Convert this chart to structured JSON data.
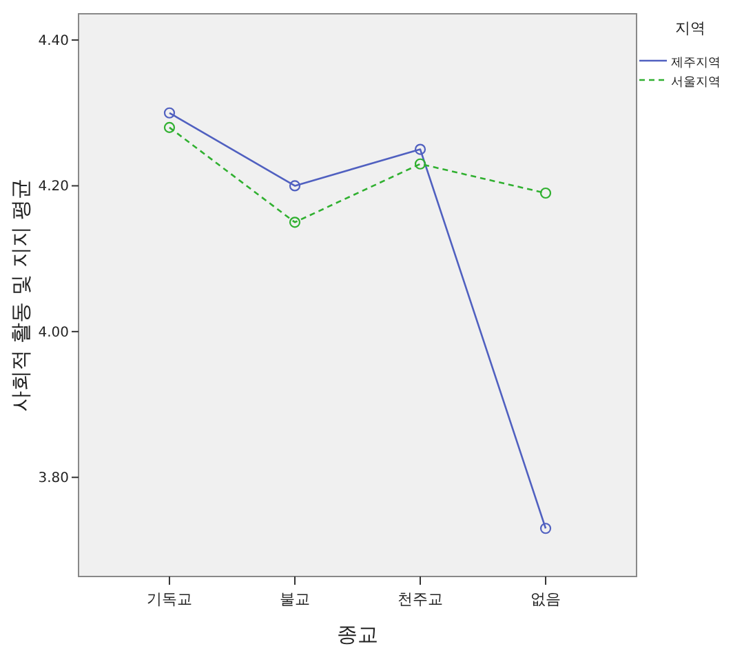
{
  "chart_data": {
    "type": "line",
    "xlabel": "종교",
    "ylabel": "사회적 활동 및 지지 평균",
    "legend_title": "지역",
    "categories": [
      "기독교",
      "불교",
      "천주교",
      "없음"
    ],
    "series": [
      {
        "name": "제주지역",
        "color": "#5060c0",
        "line_style": "solid",
        "values": [
          4.3,
          4.2,
          4.25,
          3.73
        ]
      },
      {
        "name": "서울지역",
        "color": "#30b030",
        "line_style": "dashed",
        "values": [
          4.28,
          4.15,
          4.23,
          4.19
        ]
      }
    ],
    "marker": "circle",
    "legend": "right",
    "ylim": [
      3.664,
      4.436
    ],
    "yticks": [
      {
        "value": 3.8,
        "label": "3.80"
      },
      {
        "value": 4.0,
        "label": "4.00"
      },
      {
        "value": 4.2,
        "label": "4.20"
      },
      {
        "value": 4.4,
        "label": "4.40"
      }
    ]
  }
}
